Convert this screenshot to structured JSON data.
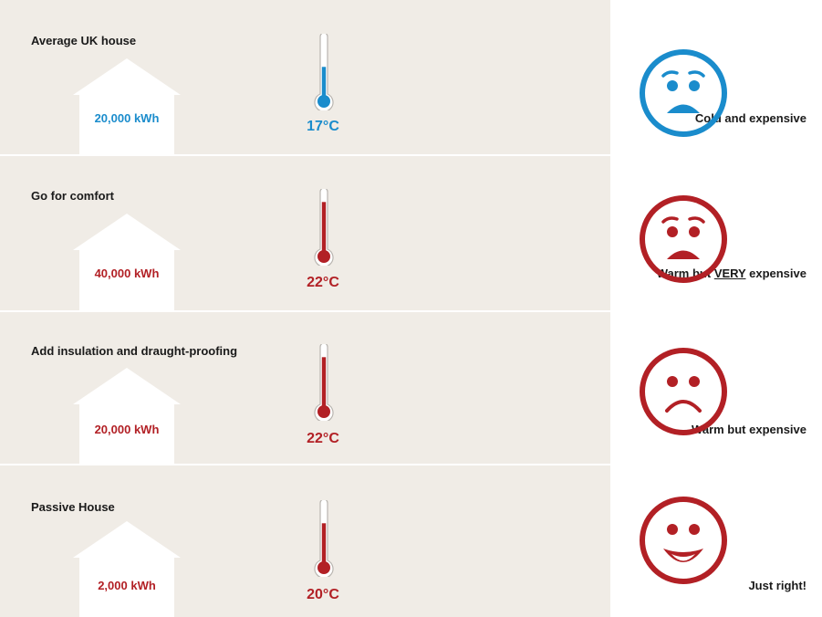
{
  "colors": {
    "panel_background": "#f0ece6",
    "house_fill": "#ffffff",
    "cold_blue": "#1a8ccc",
    "warm_red": "#b22025",
    "text": "#1a1a1a"
  },
  "rows": [
    {
      "title": "Average UK house",
      "energy": "20,000 kWh",
      "temperature": "17°C",
      "thermometer_fill_level": 0.52,
      "verdict_before": "Cold and expensive",
      "verdict_emphasis": "",
      "verdict_after": "",
      "face_icon": "worried-face-icon",
      "color": "#1a8ccc"
    },
    {
      "title": "Go for comfort",
      "energy": "40,000 kWh",
      "temperature": "22°C",
      "thermometer_fill_level": 0.88,
      "verdict_before": "Warm but ",
      "verdict_emphasis": "VERY",
      "verdict_after": " expensive",
      "face_icon": "worried-face-icon",
      "color": "#b22025"
    },
    {
      "title": "Add insulation and draught-proofing",
      "energy": "20,000 kWh",
      "temperature": "22°C",
      "thermometer_fill_level": 0.88,
      "verdict_before": "Warm but expensive",
      "verdict_emphasis": "",
      "verdict_after": "",
      "face_icon": "sad-face-icon",
      "color": "#b22025"
    },
    {
      "title": "Passive House",
      "energy": "2,000 kWh",
      "temperature": "20°C",
      "thermometer_fill_level": 0.7,
      "verdict_before": "Just right!",
      "verdict_emphasis": "",
      "verdict_after": "",
      "face_icon": "smiling-face-icon",
      "color": "#b22025"
    }
  ]
}
